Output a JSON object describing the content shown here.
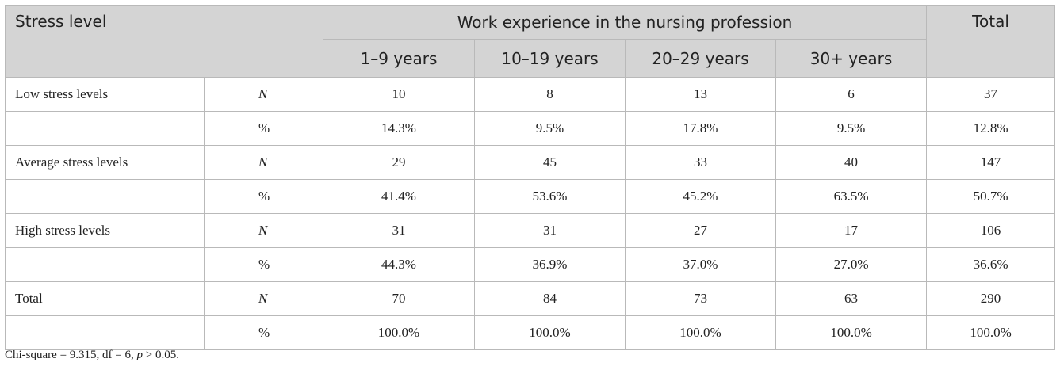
{
  "table": {
    "header": {
      "stress_level": "Stress level",
      "work_experience": "Work experience in the nursing profession",
      "total": "Total",
      "groups": [
        "1–9 years",
        "10–19 years",
        "20–29 years",
        "30+ years"
      ]
    },
    "rows": [
      {
        "label": "Low stress levels",
        "stat": "N",
        "values": [
          "10",
          "8",
          "13",
          "6"
        ],
        "total": "37"
      },
      {
        "label": "",
        "stat": "%",
        "values": [
          "14.3%",
          "9.5%",
          "17.8%",
          "9.5%"
        ],
        "total": "12.8%"
      },
      {
        "label": "Average stress levels",
        "stat": "N",
        "values": [
          "29",
          "45",
          "33",
          "40"
        ],
        "total": "147"
      },
      {
        "label": "",
        "stat": "%",
        "values": [
          "41.4%",
          "53.6%",
          "45.2%",
          "63.5%"
        ],
        "total": "50.7%"
      },
      {
        "label": "High stress levels",
        "stat": "N",
        "values": [
          "31",
          "31",
          "27",
          "17"
        ],
        "total": "106"
      },
      {
        "label": "",
        "stat": "%",
        "values": [
          "44.3%",
          "36.9%",
          "37.0%",
          "27.0%"
        ],
        "total": "36.6%"
      },
      {
        "label": "Total",
        "stat": "N",
        "values": [
          "70",
          "84",
          "73",
          "63"
        ],
        "total": "290"
      },
      {
        "label": "",
        "stat": "%",
        "values": [
          "100.0%",
          "100.0%",
          "100.0%",
          "100.0%"
        ],
        "total": "100.0%"
      }
    ]
  },
  "footnote": {
    "prefix": "Chi-square = 9.315, df = 6, ",
    "p_symbol": "p",
    "suffix": " > 0.05."
  }
}
